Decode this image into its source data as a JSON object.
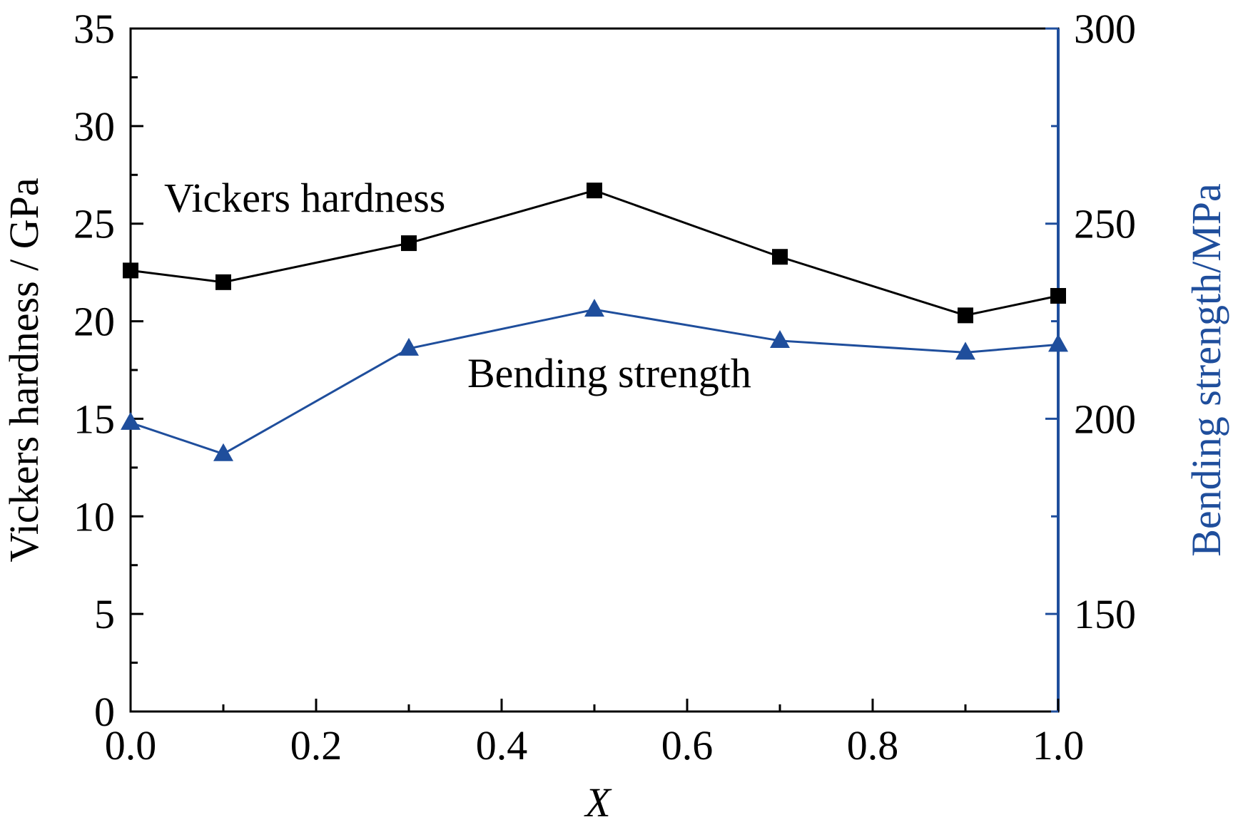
{
  "chart_data": {
    "type": "line",
    "xlabel": "X",
    "xlim": [
      0.0,
      1.0
    ],
    "x_ticks": [
      "0.0",
      "0.2",
      "0.4",
      "0.6",
      "0.8",
      "1.0"
    ],
    "y_left": {
      "label": "Vickers hardness / GPa",
      "lim": [
        0,
        35
      ],
      "ticks": [
        "0",
        "5",
        "10",
        "15",
        "20",
        "25",
        "30",
        "35"
      ],
      "color": "#000000"
    },
    "y_right": {
      "label": "Bending strength/MPa",
      "lim": [
        125,
        300
      ],
      "ticks": [
        "150",
        "200",
        "250",
        "300"
      ],
      "color": "#1f4e9c"
    },
    "series": [
      {
        "name": "Vickers hardness",
        "axis": "left",
        "marker": "square",
        "color": "#000000",
        "x": [
          0.0,
          0.1,
          0.3,
          0.5,
          0.7,
          0.9,
          1.0
        ],
        "values": [
          22.6,
          22.0,
          24.0,
          26.7,
          23.3,
          20.3,
          21.3
        ]
      },
      {
        "name": "Bending strength",
        "axis": "right",
        "marker": "triangle",
        "color": "#1f4e9c",
        "x": [
          0.0,
          0.1,
          0.3,
          0.5,
          0.7,
          0.9,
          1.0
        ],
        "values": [
          199,
          191,
          218,
          228,
          220,
          217,
          219
        ]
      }
    ],
    "annotations": [
      "Vickers hardness",
      "Bending strength"
    ],
    "grid": false,
    "legend": "none"
  }
}
